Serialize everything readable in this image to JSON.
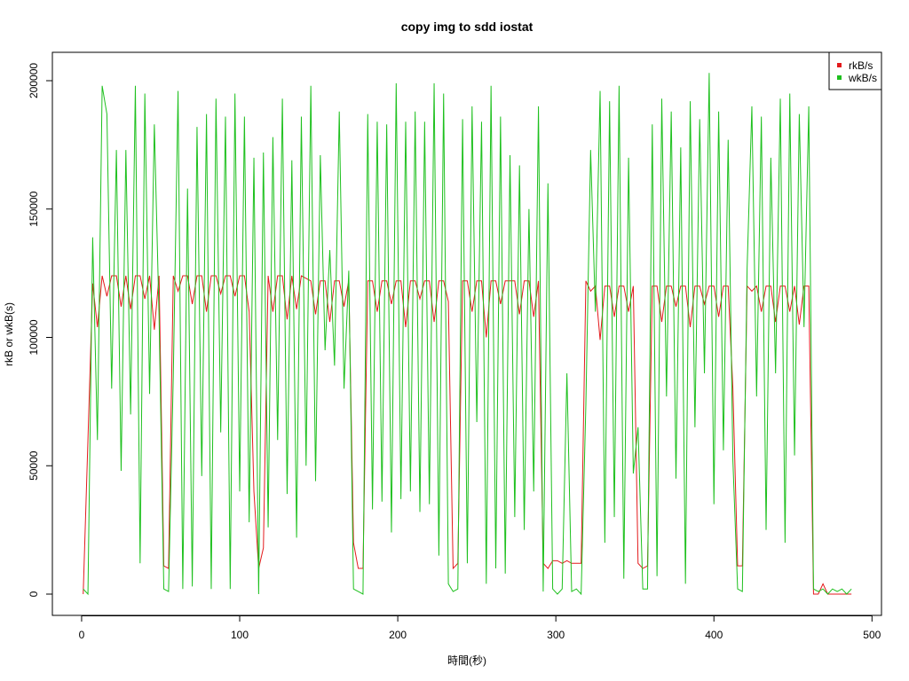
{
  "chart_data": {
    "type": "line",
    "title": "copy img to sdd iostat",
    "xlabel": "時間(秒)",
    "ylabel": "rkB or wkB(s)",
    "xlim": [
      -18.5,
      506
    ],
    "ylim": [
      -8290,
      211050
    ],
    "xticks": [
      0,
      100,
      200,
      300,
      400,
      500
    ],
    "yticks": [
      0,
      50000,
      100000,
      150000,
      200000
    ],
    "legend": "top-right",
    "x": [
      1,
      4,
      7,
      10,
      13,
      16,
      19,
      22,
      25,
      28,
      31,
      34,
      37,
      40,
      43,
      46,
      49,
      52,
      55,
      58,
      61,
      64,
      67,
      70,
      73,
      76,
      79,
      82,
      85,
      88,
      91,
      94,
      97,
      100,
      103,
      106,
      109,
      112,
      115,
      118,
      121,
      124,
      127,
      130,
      133,
      136,
      139,
      142,
      145,
      148,
      151,
      154,
      157,
      160,
      163,
      166,
      169,
      172,
      175,
      178,
      181,
      184,
      187,
      190,
      193,
      196,
      199,
      202,
      205,
      208,
      211,
      214,
      217,
      220,
      223,
      226,
      229,
      232,
      235,
      238,
      241,
      244,
      247,
      250,
      253,
      256,
      259,
      262,
      265,
      268,
      271,
      274,
      277,
      280,
      283,
      286,
      289,
      292,
      295,
      298,
      301,
      304,
      307,
      310,
      313,
      316,
      319,
      322,
      325,
      328,
      331,
      334,
      337,
      340,
      343,
      346,
      349,
      352,
      355,
      358,
      361,
      364,
      367,
      370,
      373,
      376,
      379,
      382,
      385,
      388,
      391,
      394,
      397,
      400,
      403,
      406,
      409,
      412,
      415,
      418,
      421,
      424,
      427,
      430,
      433,
      436,
      439,
      442,
      445,
      448,
      451,
      454,
      457,
      460,
      463,
      466,
      469,
      472,
      475,
      478,
      481,
      484,
      487
    ],
    "series": [
      {
        "name": "rkB/s",
        "color": "#e31a1c",
        "values": [
          0,
          60000,
          121000,
          104000,
          124000,
          116000,
          124000,
          124000,
          112000,
          124000,
          111000,
          124000,
          124000,
          115000,
          124000,
          103000,
          124000,
          11000,
          10000,
          124000,
          118000,
          124000,
          124000,
          113000,
          124000,
          124000,
          110000,
          124000,
          124000,
          117000,
          124000,
          124000,
          116000,
          124000,
          124000,
          110000,
          40000,
          10000,
          18000,
          124000,
          110000,
          124000,
          124000,
          107000,
          124000,
          111000,
          124000,
          123000,
          122000,
          109000,
          122000,
          122000,
          106000,
          122000,
          122000,
          112000,
          122000,
          20000,
          10000,
          10000,
          122000,
          122000,
          110000,
          122000,
          122000,
          113000,
          122000,
          122000,
          104000,
          122000,
          122000,
          115000,
          122000,
          122000,
          106000,
          122000,
          122000,
          114000,
          10000,
          12000,
          122000,
          122000,
          110000,
          122000,
          122000,
          100000,
          122000,
          122000,
          113000,
          122000,
          122000,
          122000,
          109000,
          122000,
          122000,
          108000,
          122000,
          12000,
          10000,
          13000,
          13000,
          12000,
          13000,
          12000,
          12000,
          12000,
          122000,
          118000,
          120000,
          99000,
          120000,
          120000,
          108000,
          120000,
          120000,
          110000,
          120000,
          12000,
          10000,
          11000,
          120000,
          120000,
          106000,
          120000,
          120000,
          112000,
          120000,
          120000,
          104000,
          120000,
          120000,
          113000,
          120000,
          120000,
          108000,
          120000,
          120000,
          80000,
          11000,
          11000,
          120000,
          118000,
          120000,
          110000,
          120000,
          120000,
          106000,
          120000,
          120000,
          110000,
          120000,
          105000,
          120000,
          120000,
          0,
          0,
          4000,
          0,
          0,
          0,
          0,
          0,
          0
        ]
      },
      {
        "name": "wkB/s",
        "color": "#1ec01e",
        "values": [
          2000,
          0,
          139000,
          60000,
          198000,
          187000,
          80000,
          173000,
          48000,
          173000,
          70000,
          198000,
          12000,
          195000,
          78000,
          183000,
          108000,
          2000,
          1000,
          85000,
          196000,
          2000,
          158000,
          3000,
          182000,
          46000,
          187000,
          2000,
          193000,
          63000,
          186000,
          2000,
          195000,
          40000,
          186000,
          28000,
          170000,
          0,
          172000,
          26000,
          178000,
          60000,
          193000,
          39000,
          169000,
          22000,
          186000,
          50000,
          198000,
          44000,
          171000,
          95000,
          134000,
          89000,
          188000,
          80000,
          126000,
          2000,
          1000,
          0,
          187000,
          33000,
          184000,
          36000,
          183000,
          24000,
          199000,
          37000,
          184000,
          40000,
          188000,
          32000,
          184000,
          35000,
          199000,
          15000,
          195000,
          4000,
          1000,
          2000,
          185000,
          12000,
          190000,
          67000,
          184000,
          4000,
          198000,
          10000,
          186000,
          8000,
          171000,
          30000,
          167000,
          25000,
          150000,
          40000,
          190000,
          1000,
          160000,
          2000,
          0,
          2000,
          86000,
          1000,
          2000,
          0,
          74000,
          173000,
          110000,
          196000,
          20000,
          192000,
          30000,
          198000,
          6000,
          170000,
          47000,
          65000,
          2000,
          2000,
          183000,
          7000,
          193000,
          77000,
          188000,
          45000,
          174000,
          4000,
          192000,
          65000,
          185000,
          86000,
          203000,
          35000,
          188000,
          56000,
          177000,
          52000,
          2000,
          1000,
          127000,
          190000,
          77000,
          186000,
          25000,
          170000,
          86000,
          193000,
          20000,
          195000,
          54000,
          187000,
          104000,
          190000,
          2000,
          1000,
          2000,
          0,
          2000,
          1000,
          2000,
          0,
          2000
        ]
      }
    ]
  }
}
